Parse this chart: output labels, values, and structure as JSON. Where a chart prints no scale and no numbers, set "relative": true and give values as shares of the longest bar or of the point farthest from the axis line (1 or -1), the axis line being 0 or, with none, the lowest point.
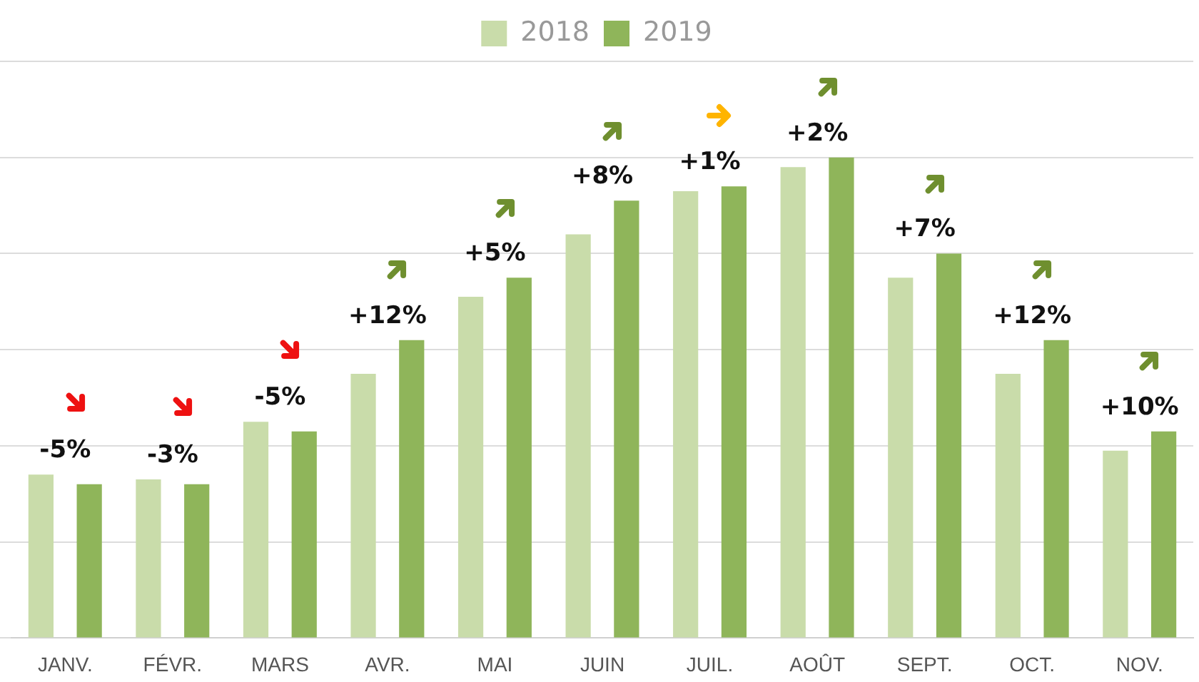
{
  "chart_data": {
    "type": "bar",
    "relative": true,
    "categories": [
      "JANV.",
      "FÉVR.",
      "MARS",
      "AVR.",
      "MAI",
      "JUIN",
      "JUIL.",
      "AOÛT",
      "SEPT.",
      "OCT.",
      "NOV."
    ],
    "series": [
      {
        "name": "2018",
        "color": "#c9dcaa",
        "values": [
          0.34,
          0.33,
          0.45,
          0.55,
          0.71,
          0.84,
          0.93,
          0.98,
          0.75,
          0.55,
          0.39
        ]
      },
      {
        "name": "2019",
        "color": "#8fb55a",
        "values": [
          0.32,
          0.32,
          0.43,
          0.62,
          0.75,
          0.91,
          0.94,
          1,
          0.8,
          0.62,
          0.43
        ]
      }
    ],
    "legend": "top",
    "grid": "y",
    "annotations": [
      "-5%",
      "-3%",
      "-5%",
      "+12%",
      "+5%",
      "+8%",
      "+1%",
      "+2%",
      "+7%",
      "+12%",
      "+10%"
    ]
  }
}
